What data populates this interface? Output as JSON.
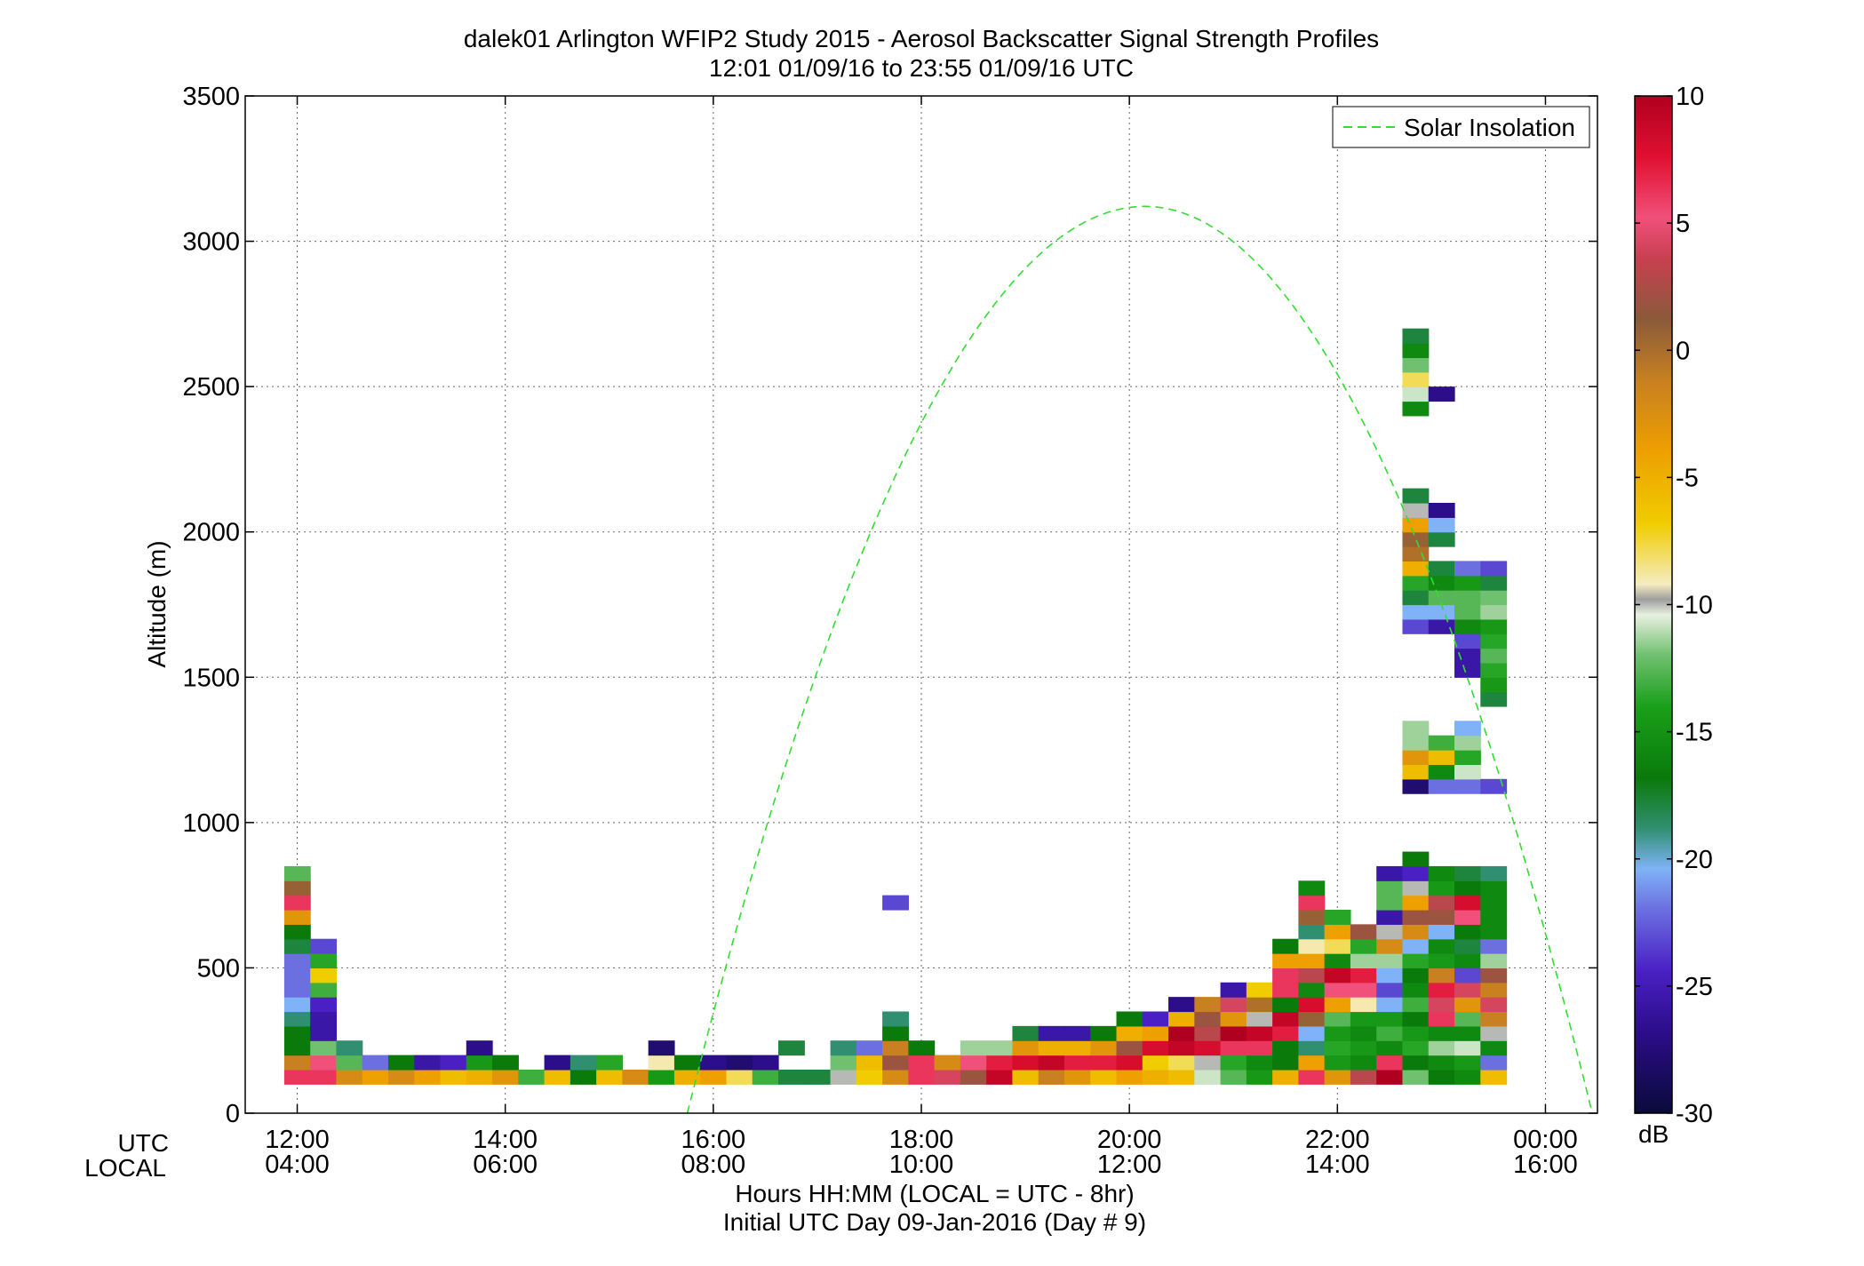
{
  "chart_data": {
    "type": "heatmap",
    "title": "dalek01 Arlington WFIP2 Study 2015 - Aerosol Backscatter Signal Strength Profiles",
    "subtitle": "12:01 01/09/16 to 23:55 01/09/16  UTC",
    "ylabel": "Altitude (m)",
    "xlabel": "Hours HH:MM  (LOCAL = UTC - 8hr)",
    "xlabel2": "Initial UTC Day 09-Jan-2016 (Day # 9)",
    "xrow_labels": [
      "UTC",
      "LOCAL"
    ],
    "xlim_hours": [
      11.5,
      24.5
    ],
    "ylim": [
      0,
      3500
    ],
    "grid": true,
    "yticks": [
      0,
      500,
      1000,
      1500,
      2000,
      2500,
      3000,
      3500
    ],
    "xticks_utc": [
      "12:00",
      "14:00",
      "16:00",
      "18:00",
      "20:00",
      "22:00",
      "00:00"
    ],
    "xticks_local": [
      "04:00",
      "06:00",
      "08:00",
      "10:00",
      "12:00",
      "14:00",
      "16:00"
    ],
    "legend": {
      "position": "top-right",
      "entries": [
        {
          "label": "Solar Insolation",
          "color": "#33dd33",
          "style": "dashed"
        }
      ]
    },
    "colorbar": {
      "label": "dB",
      "min": -30,
      "max": 10,
      "ticks": [
        10,
        5,
        0,
        -5,
        -10,
        -15,
        -20,
        -25,
        -30
      ]
    },
    "solar_insolation": {
      "color": "#33dd33",
      "peak_hour_utc": 20.15,
      "peak_altitude_m": 3120,
      "zero_crossing_hours_utc": [
        15.75,
        24.45
      ]
    },
    "cell_height_m": 50,
    "cell_width_hours": 0.25,
    "profiles": [
      {
        "t": 12.0,
        "z0": 100,
        "dB": [
          6,
          -1,
          -19,
          -19,
          -21,
          -22,
          -23,
          -23,
          -23,
          -20,
          -19,
          -3,
          6,
          1,
          -14
        ]
      },
      {
        "t": 12.25,
        "z0": 100,
        "dB": [
          6,
          5,
          -13,
          -26,
          -26,
          -25,
          -15,
          -7,
          -16,
          -24
        ]
      },
      {
        "t": 12.5,
        "z0": 100,
        "dB": [
          -2,
          -14,
          -21
        ]
      },
      {
        "t": 12.75,
        "z0": 100,
        "dB": [
          -4,
          -23
        ]
      },
      {
        "t": 13.0,
        "z0": 100,
        "dB": [
          -2,
          -19
        ]
      },
      {
        "t": 13.25,
        "z0": 100,
        "dB": [
          -4,
          -26
        ]
      },
      {
        "t": 13.5,
        "z0": 100,
        "dB": [
          -6,
          -25
        ]
      },
      {
        "t": 13.75,
        "z0": 100,
        "dB": [
          -5,
          -17,
          -27
        ]
      },
      {
        "t": 14.0,
        "z0": 100,
        "dB": [
          -3,
          -19
        ]
      },
      {
        "t": 14.25,
        "z0": 100,
        "dB": [
          -15
        ]
      },
      {
        "t": 14.5,
        "z0": 100,
        "dB": [
          -6,
          -27
        ]
      },
      {
        "t": 14.75,
        "z0": 100,
        "dB": [
          -19,
          -21
        ]
      },
      {
        "t": 15.0,
        "z0": 100,
        "dB": [
          -6,
          -16
        ]
      },
      {
        "t": 15.25,
        "z0": 100,
        "dB": [
          -2
        ]
      },
      {
        "t": 15.5,
        "z0": 100,
        "dB": [
          -17,
          -9,
          -28
        ]
      },
      {
        "t": 15.75,
        "z0": 100,
        "dB": [
          -5,
          -19
        ]
      },
      {
        "t": 16.0,
        "z0": 100,
        "dB": [
          -4,
          -27
        ]
      },
      {
        "t": 16.25,
        "z0": 100,
        "dB": [
          -8,
          -28
        ]
      },
      {
        "t": 16.5,
        "z0": 100,
        "dB": [
          -15,
          -27
        ]
      },
      {
        "t": 16.75,
        "z0": 100,
        "dB": [
          -20,
          null,
          -20
        ]
      },
      {
        "t": 17.0,
        "z0": 100,
        "dB": [
          -20
        ]
      },
      {
        "t": 17.25,
        "z0": 100,
        "dB": [
          -10,
          -13,
          -21
        ]
      },
      {
        "t": 17.5,
        "z0": 100,
        "dB": [
          -7,
          -6,
          -23
        ]
      },
      {
        "t": 17.75,
        "z0": 100,
        "dB": [
          -2,
          2,
          -1,
          -19,
          -21
        ],
        "extra": [
          {
            "z": 700,
            "dB": -24
          }
        ]
      },
      {
        "t": 18.0,
        "z0": 100,
        "dB": [
          6,
          6,
          -19
        ]
      },
      {
        "t": 18.25,
        "z0": 100,
        "dB": [
          4,
          -2
        ]
      },
      {
        "t": 18.5,
        "z0": 100,
        "dB": [
          2,
          5,
          -12
        ]
      },
      {
        "t": 18.75,
        "z0": 100,
        "dB": [
          9,
          7,
          -12
        ]
      },
      {
        "t": 19.0,
        "z0": 100,
        "dB": [
          -6,
          8,
          -3,
          -20
        ]
      },
      {
        "t": 19.25,
        "z0": 100,
        "dB": [
          -1,
          9,
          -5,
          -26
        ]
      },
      {
        "t": 19.5,
        "z0": 100,
        "dB": [
          -3,
          7,
          -5,
          -26
        ]
      },
      {
        "t": 19.75,
        "z0": 100,
        "dB": [
          -6,
          7,
          -3,
          -19
        ]
      },
      {
        "t": 20.0,
        "z0": 100,
        "dB": [
          -4,
          8,
          2,
          -5,
          -19
        ]
      },
      {
        "t": 20.25,
        "z0": 100,
        "dB": [
          -5,
          -7,
          8,
          -4,
          -25
        ]
      },
      {
        "t": 20.5,
        "z0": 100,
        "dB": [
          -6,
          -8,
          9,
          10,
          -5,
          -27
        ]
      },
      {
        "t": 20.75,
        "z0": 100,
        "dB": [
          -11,
          -10,
          8,
          3,
          2,
          -1
        ]
      },
      {
        "t": 21.0,
        "z0": 100,
        "dB": [
          -14,
          -16,
          6,
          10,
          -3,
          4,
          -26
        ]
      },
      {
        "t": 21.25,
        "z0": 100,
        "dB": [
          -17,
          -18,
          6,
          9,
          -10,
          0,
          -7
        ]
      },
      {
        "t": 21.5,
        "z0": 100,
        "dB": [
          -5,
          -19,
          -19,
          7,
          9,
          -19,
          6,
          6,
          -4,
          -19
        ]
      },
      {
        "t": 21.75,
        "z0": 100,
        "dB": [
          6,
          -4,
          -21,
          -22,
          1,
          8,
          -18,
          3,
          -4,
          -9,
          -21,
          1,
          6,
          -18
        ]
      },
      {
        "t": 22.0,
        "z0": 100,
        "dB": [
          -3,
          -17,
          -16,
          -17,
          -14,
          -4,
          5,
          9,
          -18,
          -8,
          -4,
          -16
        ]
      },
      {
        "t": 22.25,
        "z0": 100,
        "dB": [
          3,
          -18,
          -17,
          -18,
          -17,
          -9,
          5,
          7,
          -12,
          -16,
          2
        ]
      },
      {
        "t": 22.5,
        "z0": 100,
        "dB": [
          10,
          6,
          -18,
          -15,
          -17,
          -22,
          -24,
          -22,
          -12,
          -2,
          -10,
          -26,
          -14,
          -14,
          -26
        ]
      },
      {
        "t": 22.75,
        "z0": 100,
        "dB": [
          -13,
          -19,
          -16,
          -17,
          -19,
          -15,
          -18,
          -19,
          -16,
          -22,
          -2,
          2,
          -4,
          -10,
          -25,
          -19
        ],
        "extra2": [
          {
            "z": 1100,
            "dB": -28
          },
          {
            "z": 1150,
            "dB": -6
          },
          {
            "z": 1200,
            "dB": -3
          },
          {
            "z": 1250,
            "dB": -12
          },
          {
            "z": 1300,
            "dB": -12
          },
          {
            "z": 1650,
            "dB": -24
          },
          {
            "z": 1700,
            "dB": -22
          },
          {
            "z": 1750,
            "dB": -20
          },
          {
            "z": 1800,
            "dB": -16
          },
          {
            "z": 1850,
            "dB": -5
          },
          {
            "z": 1900,
            "dB": 0
          },
          {
            "z": 1950,
            "dB": 1
          },
          {
            "z": 2000,
            "dB": -4
          },
          {
            "z": 2050,
            "dB": -10
          },
          {
            "z": 2100,
            "dB": -20
          },
          {
            "z": 2400,
            "dB": -18
          },
          {
            "z": 2450,
            "dB": -11
          },
          {
            "z": 2500,
            "dB": -8
          },
          {
            "z": 2550,
            "dB": -13
          },
          {
            "z": 2600,
            "dB": -18
          },
          {
            "z": 2650,
            "dB": -20
          }
        ]
      },
      {
        "t": 23.0,
        "z0": 100,
        "dB": [
          -19,
          -18,
          -12,
          -18,
          6,
          4,
          7,
          -1,
          -17,
          -18,
          -22,
          2,
          3,
          -17,
          -18
        ],
        "extra2": [
          {
            "z": 1100,
            "dB": -23
          },
          {
            "z": 1150,
            "dB": -18
          },
          {
            "z": 1200,
            "dB": -6
          },
          {
            "z": 1250,
            "dB": -15
          },
          {
            "z": 1650,
            "dB": -26
          },
          {
            "z": 1700,
            "dB": -22
          },
          {
            "z": 1750,
            "dB": -14
          },
          {
            "z": 1800,
            "dB": -18
          },
          {
            "z": 1850,
            "dB": -20
          },
          {
            "z": 1950,
            "dB": -20
          },
          {
            "z": 2000,
            "dB": -22
          },
          {
            "z": 2050,
            "dB": -27
          },
          {
            "z": 2450,
            "dB": -27
          }
        ]
      },
      {
        "t": 23.25,
        "z0": 100,
        "dB": [
          -18,
          -17,
          -11,
          -18,
          -14,
          -3,
          4,
          -24,
          -18,
          -20,
          -19,
          5,
          8,
          -19,
          -20
        ],
        "extra2": [
          {
            "z": 1100,
            "dB": -23
          },
          {
            "z": 1150,
            "dB": -11
          },
          {
            "z": 1200,
            "dB": -16
          },
          {
            "z": 1250,
            "dB": -12
          },
          {
            "z": 1300,
            "dB": -22
          },
          {
            "z": 1500,
            "dB": -26
          },
          {
            "z": 1550,
            "dB": -26
          },
          {
            "z": 1600,
            "dB": -24
          },
          {
            "z": 1650,
            "dB": -18
          },
          {
            "z": 1700,
            "dB": -14
          },
          {
            "z": 1750,
            "dB": -14
          },
          {
            "z": 1800,
            "dB": -17
          },
          {
            "z": 1850,
            "dB": -23
          }
        ]
      },
      {
        "t": 23.5,
        "z0": 100,
        "dB": [
          -6,
          -23,
          -18,
          -10,
          -1,
          4,
          -1,
          2,
          -12,
          -23,
          -18,
          -18,
          -18,
          -18,
          -21
        ],
        "extra2": [
          {
            "z": 1100,
            "dB": -24
          },
          {
            "z": 1400,
            "dB": -20
          },
          {
            "z": 1450,
            "dB": -17
          },
          {
            "z": 1500,
            "dB": -16
          },
          {
            "z": 1550,
            "dB": -14
          },
          {
            "z": 1600,
            "dB": -16
          },
          {
            "z": 1650,
            "dB": -17
          },
          {
            "z": 1700,
            "dB": -12
          },
          {
            "z": 1750,
            "dB": -13
          },
          {
            "z": 1800,
            "dB": -20
          },
          {
            "z": 1850,
            "dB": -24
          }
        ]
      }
    ]
  }
}
